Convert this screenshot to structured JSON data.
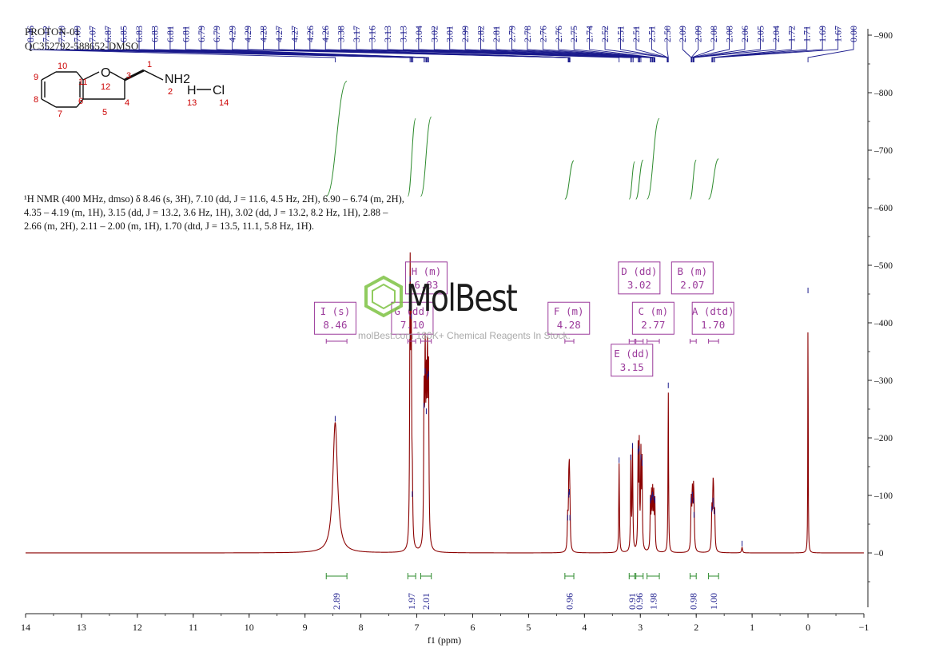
{
  "header": {
    "experiment": "PROTON-01",
    "sample": "QC352792-588652-DMSO"
  },
  "summary": {
    "line1": "¹H NMR (400 MHz, dmso) δ 8.46 (s, 3H), 7.10 (dd, J = 11.6, 4.5 Hz, 2H), 6.90 – 6.74 (m, 2H),",
    "line2": "4.35 – 4.19 (m, 1H), 3.15 (dd, J = 13.2, 3.6 Hz, 1H), 3.02 (dd, J = 13.2, 8.2 Hz, 1H), 2.88 –",
    "line3": "2.66 (m, 2H), 2.11 – 2.00 (m, 1H), 1.70 (dtd, J = 13.5, 11.1, 5.8 Hz, 1H)."
  },
  "watermark": {
    "brand": "MolBest",
    "tagline": "molBest.com 180K+ Chemical Reagents In Stock."
  },
  "structure": {
    "atoms": [
      "10",
      "11",
      "12",
      "9",
      "8",
      "7",
      "6",
      "5",
      "4",
      "3",
      "1",
      "2",
      "13",
      "14"
    ],
    "labels": [
      "O",
      "NH2",
      "H",
      "Cl"
    ]
  },
  "chart_data": {
    "type": "line",
    "title": "",
    "xlabel": "f1 (ppm)",
    "ylabel": "",
    "xlim": [
      14,
      -1
    ],
    "ylim": [
      -90,
      910
    ],
    "x_ticks": [
      14,
      13,
      12,
      11,
      10,
      9,
      8,
      7,
      6,
      5,
      4,
      3,
      2,
      1,
      0,
      -1
    ],
    "y_ticks": [
      0,
      100,
      200,
      300,
      400,
      500,
      600,
      700,
      800,
      900
    ],
    "colors": {
      "spectrum": "#8b0000",
      "peak_labels": "#1a1a8c",
      "integral": "#2e8b2e",
      "multiplet_box": "#9b3a9b",
      "axis": "#222222",
      "watermark_icon": "#7cc242"
    },
    "peaks": [
      {
        "ppm": 8.46,
        "height": 227,
        "width": 0.05
      },
      {
        "ppm": 7.12,
        "height": 470,
        "width": 0.008
      },
      {
        "ppm": 7.1,
        "height": 405,
        "width": 0.008
      },
      {
        "ppm": 7.08,
        "height": 96,
        "width": 0.008
      },
      {
        "ppm": 6.87,
        "height": 250,
        "width": 0.008
      },
      {
        "ppm": 6.85,
        "height": 310,
        "width": 0.008
      },
      {
        "ppm": 6.83,
        "height": 240,
        "width": 0.008
      },
      {
        "ppm": 6.81,
        "height": 300,
        "width": 0.008
      },
      {
        "ppm": 6.79,
        "height": 305,
        "width": 0.008
      },
      {
        "ppm": 4.3,
        "height": 55,
        "width": 0.008
      },
      {
        "ppm": 4.28,
        "height": 95,
        "width": 0.008
      },
      {
        "ppm": 4.27,
        "height": 100,
        "width": 0.008
      },
      {
        "ppm": 4.26,
        "height": 55,
        "width": 0.008
      },
      {
        "ppm": 3.38,
        "height": 155,
        "width": 0.007
      },
      {
        "ppm": 3.17,
        "height": 160,
        "width": 0.007
      },
      {
        "ppm": 3.14,
        "height": 180,
        "width": 0.007
      },
      {
        "ppm": 3.04,
        "height": 170,
        "width": 0.007
      },
      {
        "ppm": 3.02,
        "height": 175,
        "width": 0.007
      },
      {
        "ppm": 2.99,
        "height": 160,
        "width": 0.007
      },
      {
        "ppm": 2.97,
        "height": 150,
        "width": 0.007
      },
      {
        "ppm": 2.82,
        "height": 85,
        "width": 0.007
      },
      {
        "ppm": 2.8,
        "height": 90,
        "width": 0.007
      },
      {
        "ppm": 2.78,
        "height": 95,
        "width": 0.007
      },
      {
        "ppm": 2.76,
        "height": 90,
        "width": 0.007
      },
      {
        "ppm": 2.74,
        "height": 85,
        "width": 0.007
      },
      {
        "ppm": 2.5,
        "height": 285,
        "width": 0.006
      },
      {
        "ppm": 2.09,
        "height": 85,
        "width": 0.008
      },
      {
        "ppm": 2.07,
        "height": 95,
        "width": 0.008
      },
      {
        "ppm": 2.05,
        "height": 85,
        "width": 0.008
      },
      {
        "ppm": 2.04,
        "height": 60,
        "width": 0.008
      },
      {
        "ppm": 1.72,
        "height": 70,
        "width": 0.008
      },
      {
        "ppm": 1.7,
        "height": 85,
        "width": 0.008
      },
      {
        "ppm": 1.69,
        "height": 75,
        "width": 0.008
      },
      {
        "ppm": 1.67,
        "height": 65,
        "width": 0.008
      },
      {
        "ppm": 1.18,
        "height": 10,
        "width": 0.01
      },
      {
        "ppm": 0.0,
        "height": 450,
        "width": 0.004
      }
    ],
    "peak_labels": [
      "8.46",
      "7.12",
      "7.10",
      "7.09",
      "7.07",
      "6.87",
      "6.85",
      "6.83",
      "6.83",
      "6.81",
      "6.81",
      "6.79",
      "6.79",
      "4.29",
      "4.29",
      "4.28",
      "4.27",
      "4.27",
      "4.26",
      "4.26",
      "3.38",
      "3.17",
      "3.16",
      "3.13",
      "3.13",
      "3.04",
      "3.02",
      "3.01",
      "2.99",
      "2.82",
      "2.81",
      "2.79",
      "2.78",
      "2.76",
      "2.76",
      "2.75",
      "2.74",
      "2.52",
      "2.51",
      "2.51",
      "2.51",
      "2.50",
      "2.09",
      "2.09",
      "2.08",
      "2.08",
      "2.06",
      "2.05",
      "2.04",
      "1.72",
      "1.71",
      "1.69",
      "1.67",
      "0.00"
    ],
    "peak_label_ppm_range": [
      14.0,
      -0.9
    ],
    "integrals": [
      {
        "value": "2.89",
        "from": 8.62,
        "to": 8.25
      },
      {
        "value": "1.97",
        "from": 7.16,
        "to": 7.02
      },
      {
        "value": "2.01",
        "from": 6.93,
        "to": 6.74
      },
      {
        "value": "0.96",
        "from": 4.35,
        "to": 4.19
      },
      {
        "value": "0.91",
        "from": 3.2,
        "to": 3.1
      },
      {
        "value": "0.96",
        "from": 3.08,
        "to": 2.95
      },
      {
        "value": "1.98",
        "from": 2.88,
        "to": 2.66
      },
      {
        "value": "0.98",
        "from": 2.11,
        "to": 2.0
      },
      {
        "value": "1.00",
        "from": 1.78,
        "to": 1.6
      }
    ],
    "integral_curves": [
      {
        "from": 8.62,
        "to": 8.25,
        "y0": 620,
        "y1": 820
      },
      {
        "from": 7.16,
        "to": 7.02,
        "y0": 620,
        "y1": 755
      },
      {
        "from": 6.93,
        "to": 6.74,
        "y0": 620,
        "y1": 758
      },
      {
        "from": 4.35,
        "to": 4.19,
        "y0": 615,
        "y1": 682
      },
      {
        "from": 3.2,
        "to": 3.1,
        "y0": 615,
        "y1": 680
      },
      {
        "from": 3.08,
        "to": 2.95,
        "y0": 615,
        "y1": 683
      },
      {
        "from": 2.88,
        "to": 2.66,
        "y0": 615,
        "y1": 755
      },
      {
        "from": 2.11,
        "to": 2.0,
        "y0": 615,
        "y1": 683
      },
      {
        "from": 1.78,
        "to": 1.6,
        "y0": 615,
        "y1": 685
      }
    ],
    "multiplets": [
      {
        "id": "I",
        "type": "s",
        "shift": "8.46",
        "box_ppm": 8.46,
        "box_y": 408,
        "brk_from": 8.62,
        "brk_to": 8.25
      },
      {
        "id": "H",
        "type": "m",
        "shift": "6.83",
        "box_ppm": 6.83,
        "box_y": 478,
        "brk_from": 6.93,
        "brk_to": 6.74
      },
      {
        "id": "G",
        "type": "dd",
        "shift": "7.10",
        "box_ppm": 7.08,
        "box_y": 408,
        "brk_from": 7.16,
        "brk_to": 7.02
      },
      {
        "id": "F",
        "type": "m",
        "shift": "4.28",
        "box_ppm": 4.28,
        "box_y": 408,
        "brk_from": 4.35,
        "brk_to": 4.19
      },
      {
        "id": "D",
        "type": "dd",
        "shift": "3.02",
        "box_ppm": 3.02,
        "box_y": 478,
        "brk_from": 3.08,
        "brk_to": 2.95
      },
      {
        "id": "C",
        "type": "m",
        "shift": "2.77",
        "box_ppm": 2.77,
        "box_y": 408,
        "brk_from": 2.88,
        "brk_to": 2.66
      },
      {
        "id": "E",
        "type": "dd",
        "shift": "3.15",
        "box_ppm": 3.15,
        "box_y": 335,
        "brk_from": 3.2,
        "brk_to": 3.1
      },
      {
        "id": "B",
        "type": "m",
        "shift": "2.07",
        "box_ppm": 2.07,
        "box_y": 478,
        "brk_from": 2.11,
        "brk_to": 2.0
      },
      {
        "id": "A",
        "type": "dtd",
        "shift": "1.70",
        "box_ppm": 1.7,
        "box_y": 408,
        "brk_from": 1.78,
        "brk_to": 1.6
      }
    ]
  }
}
